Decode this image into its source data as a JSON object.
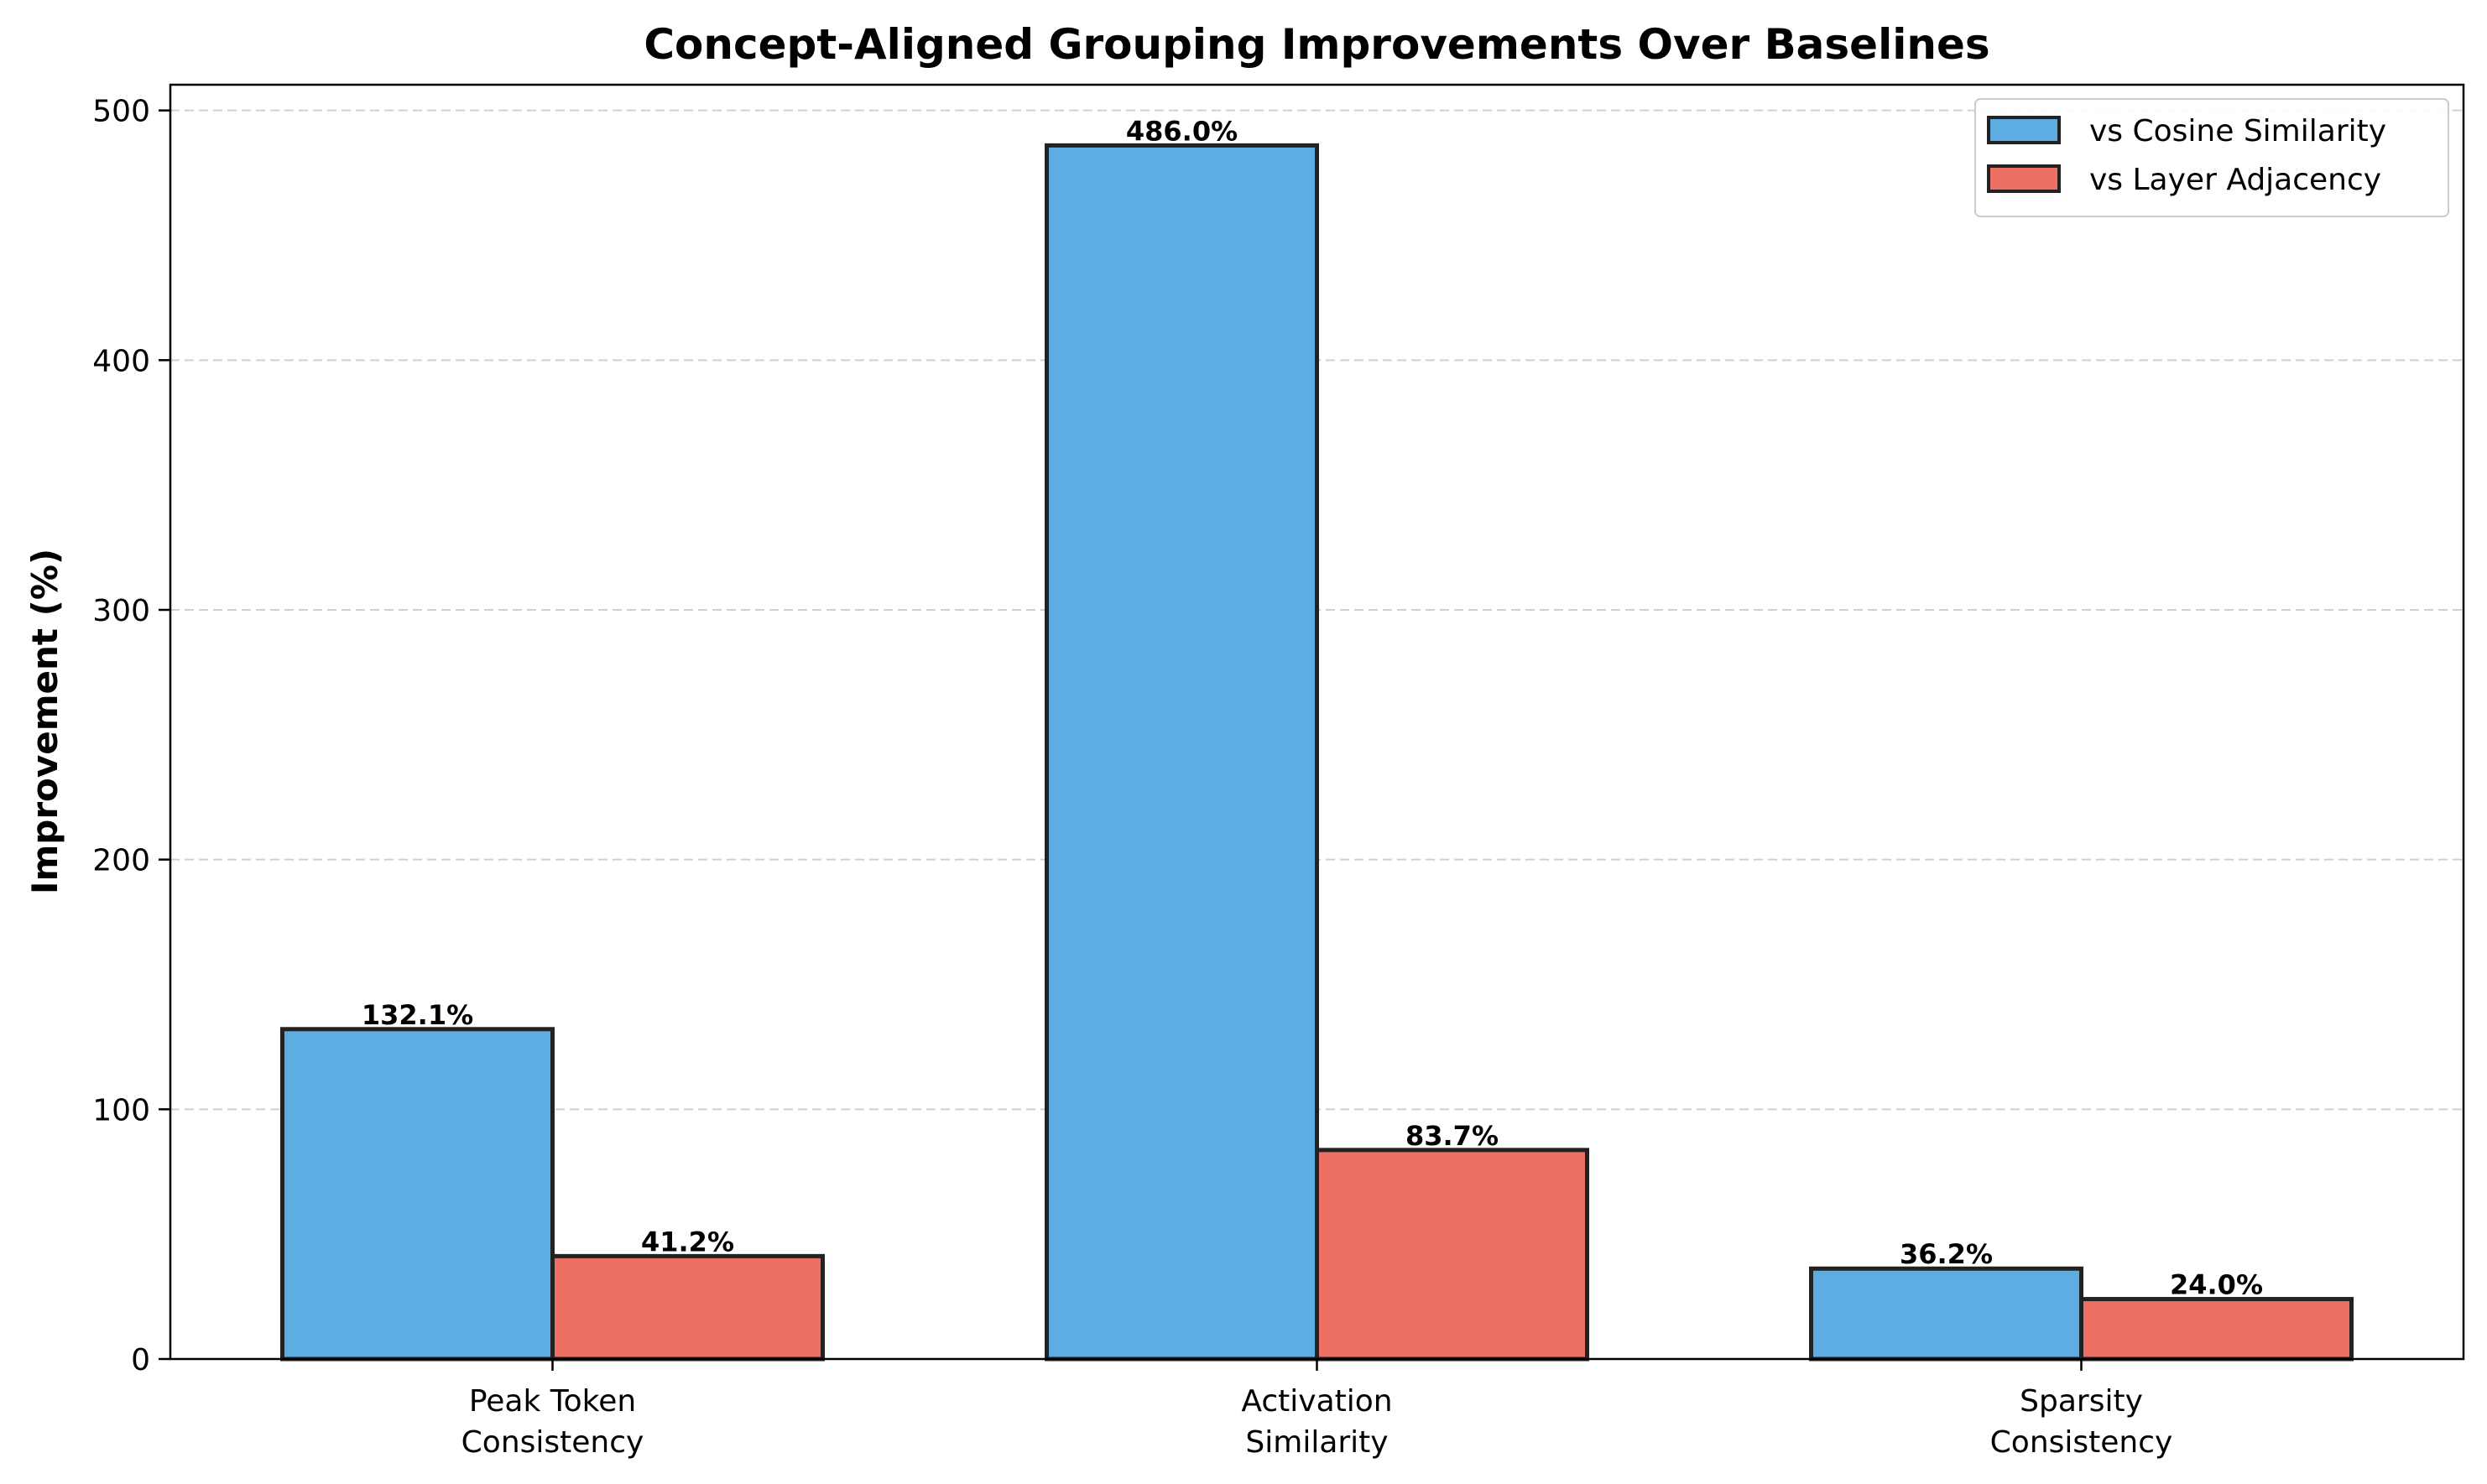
{
  "chart_data": {
    "type": "bar",
    "title": "Concept-Aligned Grouping Improvements Over Baselines",
    "xlabel": "",
    "ylabel": "Improvement (%)",
    "categories": [
      [
        "Peak Token",
        "Consistency"
      ],
      [
        "Activation",
        "Similarity"
      ],
      [
        "Sparsity",
        "Consistency"
      ]
    ],
    "series": [
      {
        "name": "vs Cosine Similarity",
        "color": "#5dade2",
        "values": [
          132.1,
          486.0,
          36.2
        ],
        "labels": [
          "132.1%",
          "486.0%",
          "36.2%"
        ]
      },
      {
        "name": "vs Layer Adjacency",
        "color": "#ec7063",
        "values": [
          41.2,
          83.7,
          24.0
        ],
        "labels": [
          "41.2%",
          "83.7%",
          "24.0%"
        ]
      }
    ],
    "ylim": [
      0,
      510.3
    ],
    "yticks": [
      0,
      100,
      200,
      300,
      400,
      500
    ],
    "grid": "y-dashed",
    "legend": "top-right"
  }
}
